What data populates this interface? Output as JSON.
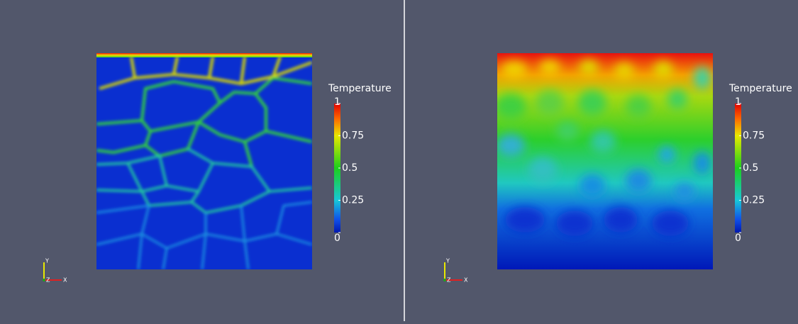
{
  "views": [
    {
      "colorbar": {
        "title": "Temperature",
        "ticks": [
          1,
          0.75,
          0.5,
          0.25,
          0
        ]
      },
      "axes": {
        "x": "X",
        "y": "Y",
        "z": "Z"
      }
    },
    {
      "colorbar": {
        "title": "Temperature",
        "ticks": [
          1,
          0.75,
          0.5,
          0.25,
          0
        ]
      },
      "axes": {
        "x": "X",
        "y": "Y",
        "z": "Z"
      }
    }
  ]
}
